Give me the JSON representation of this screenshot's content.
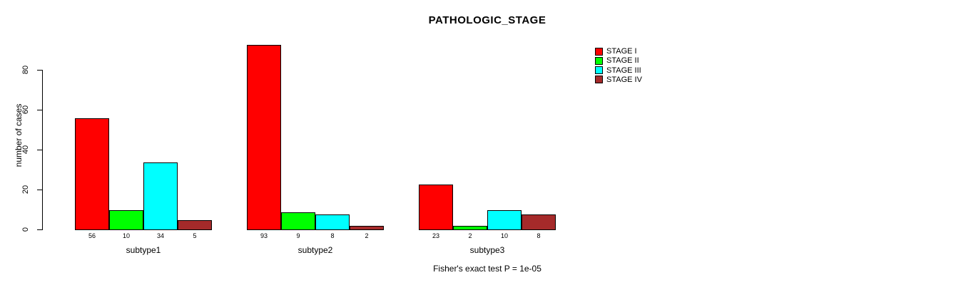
{
  "chart_data": {
    "type": "bar",
    "title": "PATHOLOGIC_STAGE",
    "xlabel": "",
    "ylabel": "number of cases",
    "categories": [
      "subtype1",
      "subtype2",
      "subtype3"
    ],
    "series": [
      {
        "name": "STAGE I",
        "color": "#ff0000",
        "values": [
          56,
          93,
          23
        ]
      },
      {
        "name": "STAGE II",
        "color": "#00ff00",
        "values": [
          10,
          9,
          2
        ]
      },
      {
        "name": "STAGE III",
        "color": "#00ffff",
        "values": [
          34,
          8,
          10
        ]
      },
      {
        "name": "STAGE IV",
        "color": "#a52a2a",
        "values": [
          5,
          2,
          8
        ]
      }
    ],
    "yticks": [
      0,
      20,
      40,
      60,
      80
    ],
    "ylim": [
      0,
      93
    ],
    "grid": false,
    "bar_value_labels_shown": true,
    "legend_position": "top-right",
    "annotation": "Fisher's exact test P = 1e-05"
  },
  "colors": {
    "background": "#ffffff",
    "axis": "#000000",
    "bar_border": "#000000",
    "text": "#000000"
  }
}
